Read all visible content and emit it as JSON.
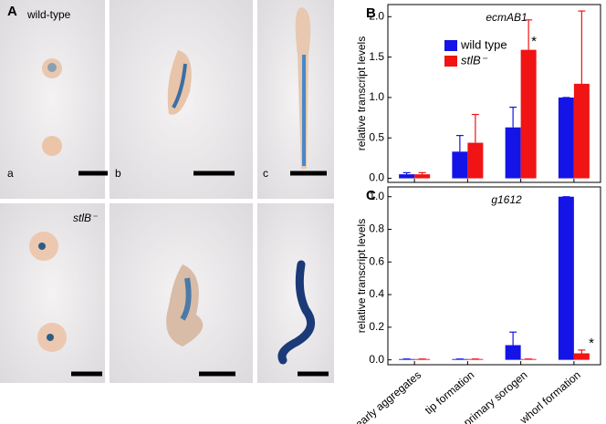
{
  "panel_a": {
    "label": "A",
    "row_labels": [
      "wild-type",
      "stlB⁻"
    ],
    "column_labels": [
      "a",
      "b",
      "c"
    ]
  },
  "chart_data": [
    {
      "type": "bar",
      "panel": "B",
      "title": "ecmAB1",
      "y_label": "relative transcript levels",
      "categories": [
        null,
        null,
        null,
        null
      ],
      "series": [
        {
          "name": "wild type",
          "color": "#1414e6",
          "values": [
            0.05,
            0.33,
            0.63,
            1.0
          ],
          "errors": [
            0.02,
            0.2,
            0.25,
            0
          ]
        },
        {
          "name": "stlB⁻",
          "color": "#f01414",
          "values": [
            0.05,
            0.44,
            1.59,
            1.17
          ],
          "errors": [
            0.02,
            0.35,
            0.37,
            0.9
          ]
        }
      ],
      "ylim": [
        -0.05,
        2.15
      ],
      "yticks": [
        {
          "value": 0,
          "label": "0.0"
        },
        {
          "value": 0.5,
          "label": "0.5"
        },
        {
          "value": 1,
          "label": "1.0"
        },
        {
          "value": 1.5,
          "label": "1.5"
        },
        {
          "value": 2,
          "label": "2.0"
        }
      ],
      "legend": "upper left",
      "annotations": [
        "*"
      ]
    },
    {
      "type": "bar",
      "panel": "C",
      "title": "g1612",
      "y_label": "relative transcript levels",
      "categories": [
        "early aggregates",
        "tip formation",
        "primary sorogen",
        "whorl formation"
      ],
      "series": [
        {
          "name": "wild type",
          "color": "#1414e6",
          "values": [
            0.005,
            0.005,
            0.09,
            1.0
          ],
          "errors": [
            0,
            0,
            0.08,
            0
          ]
        },
        {
          "name": "stlB⁻",
          "color": "#f01414",
          "values": [
            0.005,
            0.005,
            0.005,
            0.04
          ],
          "errors": [
            0,
            0,
            0,
            0.02
          ]
        }
      ],
      "ylim": [
        -0.03,
        1.06
      ],
      "yticks": [
        {
          "value": 0,
          "label": "0.0"
        },
        {
          "value": 0.2,
          "label": "0.2"
        },
        {
          "value": 0.4,
          "label": "0.4"
        },
        {
          "value": 0.6,
          "label": "0.6"
        },
        {
          "value": 0.8,
          "label": "0.8"
        },
        {
          "value": 1,
          "label": "1.0"
        }
      ],
      "annotations": [
        "*"
      ]
    }
  ]
}
